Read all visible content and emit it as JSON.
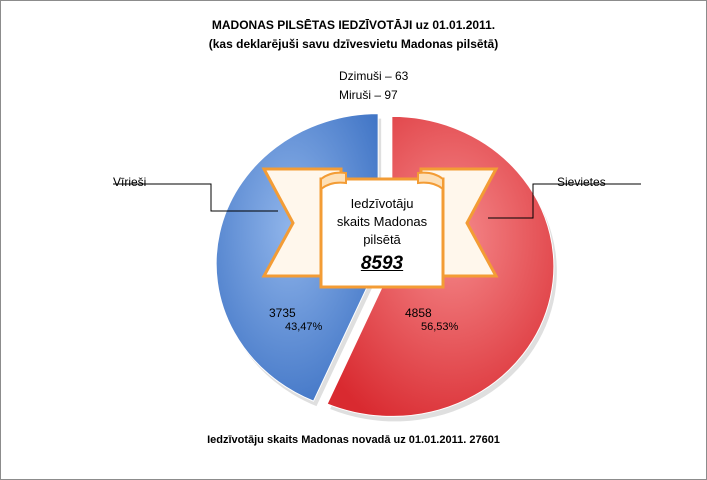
{
  "title_line1": "MADONAS PILSĒTAS IEDZĪVOTĀJI  uz  01.01.2011.",
  "title_line2": "(kas deklarējuši savu dzīvesvietu Madonas pilsētā)",
  "births_text": "Dzimuši – 63",
  "deaths_text": "Miruši –  97",
  "center_text": {
    "line1": "Iedzīvotāju",
    "line2": "skaits Madonas",
    "line3": "pilsētā",
    "total": "8593"
  },
  "footer_text": "Iedzīvotāju  skaits Madonas  novadā  uz 01.01.2011.  27601",
  "chart_data": {
    "type": "pie",
    "slices": [
      {
        "label": "Vīrieši",
        "value": 3735,
        "percent": "43,47%",
        "color": "#5b8fd6"
      },
      {
        "label": "Sievietes",
        "value": 4858,
        "percent": "56,53%",
        "color": "#e8454a"
      }
    ],
    "total": 8593,
    "exploded": true,
    "legend": "none"
  }
}
